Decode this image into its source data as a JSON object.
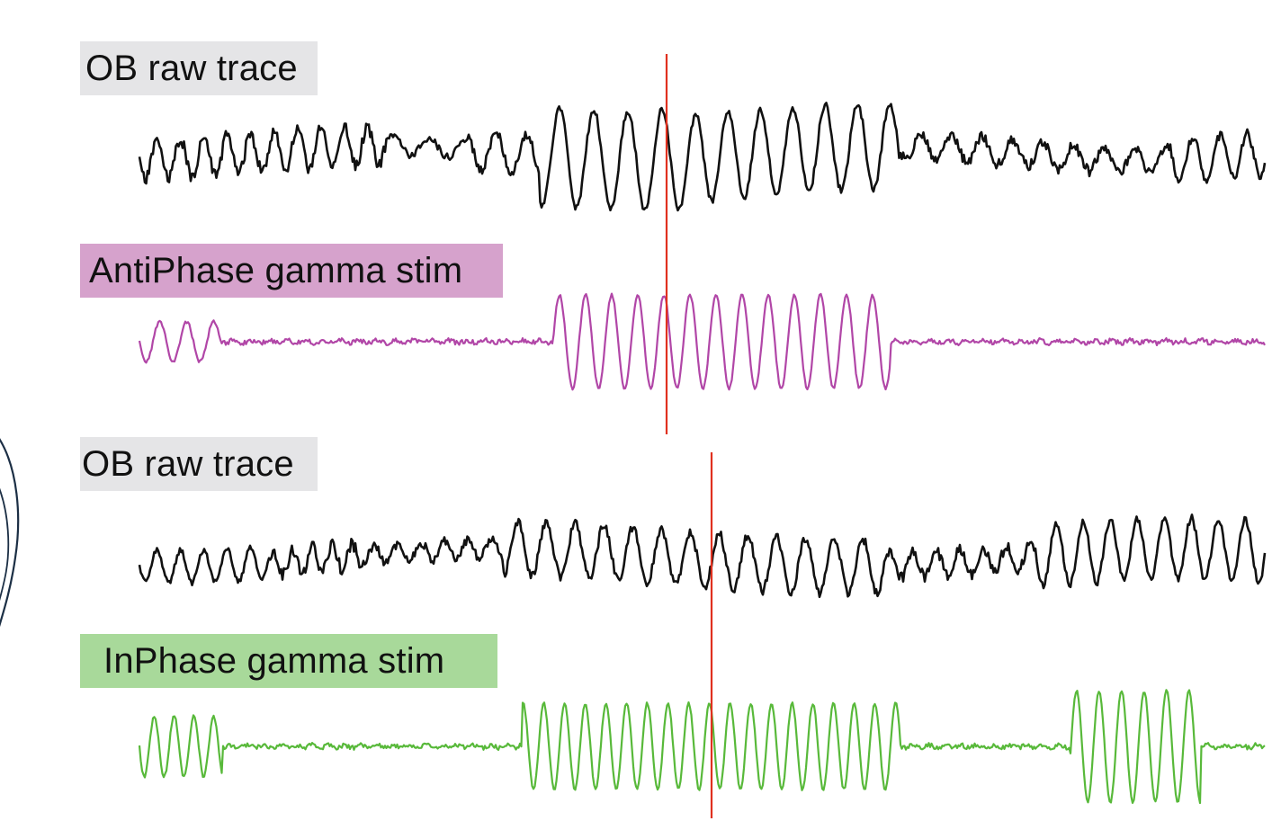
{
  "panels": [
    {
      "key": "ob_raw_1",
      "label": "OB raw trace",
      "label_bg": "#e5e5e7",
      "trace_color": "#111111"
    },
    {
      "key": "antiphase",
      "label": "AntiPhase gamma stim",
      "label_bg": "#d6a2cc",
      "trace_color": "#b146a7"
    },
    {
      "key": "ob_raw_2",
      "label": "OB raw trace",
      "label_bg": "#e5e5e7",
      "trace_color": "#111111"
    },
    {
      "key": "inphase",
      "label": "InPhase gamma stim",
      "label_bg": "#a8d99a",
      "trace_color": "#58b93a"
    }
  ],
  "marker_color": "#e0311f",
  "outline_color": "#1c2f45"
}
